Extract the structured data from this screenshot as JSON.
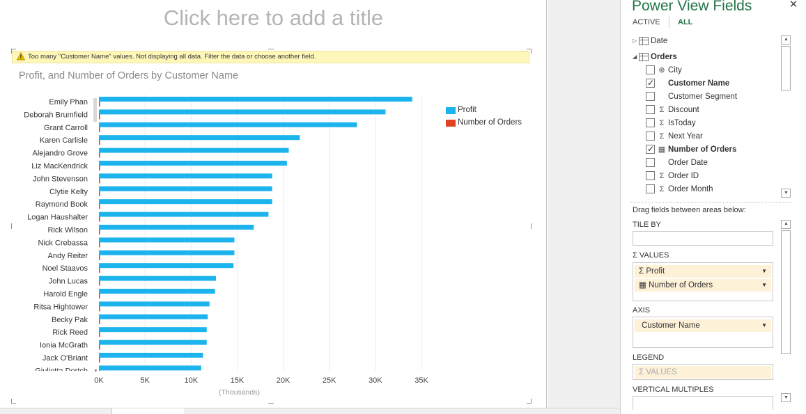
{
  "canvas": {
    "title_placeholder": "Click here to add a title",
    "warning": "Too many \"Customer Name\" values.  Not displaying all data. Filter the data or choose another field."
  },
  "chart_data": {
    "type": "bar",
    "orientation": "horizontal",
    "title": "Profit, and Number of Orders by Customer Name",
    "xlabel": "(Thousands)",
    "xlim": [
      0,
      35000
    ],
    "x_ticks": [
      "0K",
      "5K",
      "10K",
      "15K",
      "20K",
      "25K",
      "30K",
      "35K"
    ],
    "grid": true,
    "legend_position": "top-right",
    "categories": [
      "Emily Phan",
      "Deborah Brumfield",
      "Grant Carroll",
      "Karen Carlisle",
      "Alejandro Grove",
      "Liz MacKendrick",
      "John Stevenson",
      "Clytie Kelty",
      "Raymond Book",
      "Logan Haushalter",
      "Rick Wilson",
      "Nick Crebassa",
      "Andy Reiter",
      "Noel Staavos",
      "John Lucas",
      "Harold Engle",
      "Ritsa Hightower",
      "Becky Pak",
      "Rick Reed",
      "Ionia McGrath",
      "Jack O'Briant",
      "Giulietta Dortch"
    ],
    "series": [
      {
        "name": "Profit",
        "color": "#1cb4ec",
        "values": [
          34000,
          31100,
          28000,
          21800,
          20600,
          20400,
          18800,
          18800,
          18800,
          18400,
          16800,
          14700,
          14700,
          14600,
          12700,
          12600,
          12000,
          11800,
          11700,
          11700,
          11300,
          11100
        ]
      },
      {
        "name": "Number of Orders",
        "color": "#e0431f",
        "values": [
          20,
          18,
          15,
          12,
          14,
          13,
          10,
          11,
          9,
          12,
          10,
          9,
          8,
          9,
          7,
          8,
          7,
          6,
          7,
          6,
          5,
          6
        ]
      }
    ]
  },
  "fields_pane": {
    "title": "Power View Fields",
    "close_label": "✕",
    "tabs": {
      "active": "ACTIVE",
      "all": "ALL"
    },
    "tables": [
      {
        "name": "Date",
        "expanded": false
      },
      {
        "name": "Orders",
        "expanded": true
      }
    ],
    "fields": [
      {
        "label": "City",
        "glyph": "globe",
        "checked": false,
        "bold": false
      },
      {
        "label": "Customer Name",
        "glyph": "",
        "checked": true,
        "bold": true
      },
      {
        "label": "Customer Segment",
        "glyph": "",
        "checked": false,
        "bold": false
      },
      {
        "label": "Discount",
        "glyph": "sigma",
        "checked": false,
        "bold": false
      },
      {
        "label": "IsToday",
        "glyph": "sigma",
        "checked": false,
        "bold": false
      },
      {
        "label": "Next Year",
        "glyph": "sigma",
        "checked": false,
        "bold": false
      },
      {
        "label": "Number of Orders",
        "glyph": "calc",
        "checked": true,
        "bold": true
      },
      {
        "label": "Order Date",
        "glyph": "",
        "checked": false,
        "bold": false
      },
      {
        "label": "Order ID",
        "glyph": "sigma",
        "checked": false,
        "bold": false
      },
      {
        "label": "Order Month",
        "glyph": "sigma",
        "checked": false,
        "bold": false
      }
    ],
    "drag_hint": "Drag fields between areas below:",
    "areas": {
      "tile_by": "TILE BY",
      "values": "VALUES",
      "values_items": [
        {
          "label": "Profit",
          "glyph": "sigma"
        },
        {
          "label": "Number of Orders",
          "glyph": "calc"
        }
      ],
      "axis": "AXIS",
      "axis_items": [
        {
          "label": "Customer Name"
        }
      ],
      "legend": "LEGEND",
      "legend_placeholder": "VALUES",
      "vertical_multiples": "VERTICAL MULTIPLES"
    }
  }
}
